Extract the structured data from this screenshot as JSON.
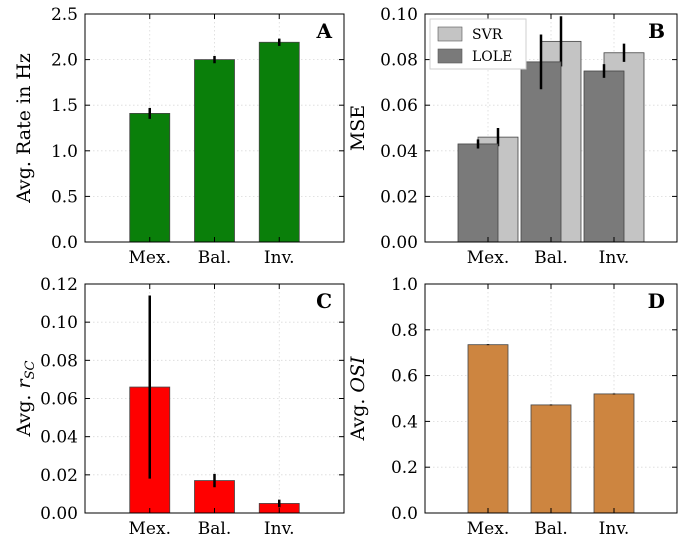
{
  "chart_data": [
    {
      "id": "A",
      "panel_label": "A",
      "type": "bar",
      "categories": [
        "Mex.",
        "Bal.",
        "Inv."
      ],
      "ylabel": "Avg. Rate in Hz",
      "ylim": [
        0,
        2.5
      ],
      "yticks": [
        "0.0",
        "0.5",
        "1.0",
        "1.5",
        "2.0",
        "2.5"
      ],
      "ytick_values": [
        0,
        0.5,
        1.0,
        1.5,
        2.0,
        2.5
      ],
      "grid": true,
      "series": [
        {
          "name": "rate",
          "color": "#0a7f0a",
          "values": [
            1.41,
            2.0,
            2.19
          ],
          "errors": [
            0.06,
            0.04,
            0.04
          ]
        }
      ]
    },
    {
      "id": "B",
      "panel_label": "B",
      "type": "bar",
      "categories": [
        "Mex.",
        "Bal.",
        "Inv."
      ],
      "ylabel": "MSE",
      "ylim": [
        0,
        0.1
      ],
      "yticks": [
        "0.00",
        "0.02",
        "0.04",
        "0.06",
        "0.08",
        "0.10"
      ],
      "ytick_values": [
        0,
        0.02,
        0.04,
        0.06,
        0.08,
        0.1
      ],
      "grid": true,
      "legend_position": "top-left",
      "series": [
        {
          "name": "SVR",
          "color": "#c4c4c4",
          "values": [
            0.046,
            0.088,
            0.083
          ],
          "errors": [
            0.004,
            0.011,
            0.004
          ]
        },
        {
          "name": "LOLE",
          "color": "#7a7a7a",
          "values": [
            0.043,
            0.079,
            0.075
          ],
          "errors": [
            0.002,
            0.012,
            0.003
          ]
        }
      ]
    },
    {
      "id": "C",
      "panel_label": "C",
      "type": "bar",
      "categories": [
        "Mex.",
        "Bal.",
        "Inv."
      ],
      "ylabel_prefix": "Avg. ",
      "ylabel_var": "r",
      "ylabel_sub": "SC",
      "ylim": [
        0,
        0.12
      ],
      "yticks": [
        "0.00",
        "0.02",
        "0.04",
        "0.06",
        "0.08",
        "0.10",
        "0.12"
      ],
      "ytick_values": [
        0,
        0.02,
        0.04,
        0.06,
        0.08,
        0.1,
        0.12
      ],
      "grid": true,
      "series": [
        {
          "name": "rsc",
          "color": "#ff0000",
          "values": [
            0.066,
            0.017,
            0.005
          ],
          "errors": [
            0.048,
            0.0035,
            0.002
          ]
        }
      ]
    },
    {
      "id": "D",
      "panel_label": "D",
      "type": "bar",
      "categories": [
        "Mex.",
        "Bal.",
        "Inv."
      ],
      "ylabel_prefix": "Avg. ",
      "ylabel_var": "OSI",
      "ylim": [
        0,
        1.0
      ],
      "yticks": [
        "0.0",
        "0.2",
        "0.4",
        "0.6",
        "0.8",
        "1.0"
      ],
      "ytick_values": [
        0,
        0.2,
        0.4,
        0.6,
        0.8,
        1.0
      ],
      "grid": true,
      "series": [
        {
          "name": "osi",
          "color": "#cd8540",
          "values": [
            0.735,
            0.472,
            0.52
          ],
          "errors": [
            0.002,
            0.002,
            0.002
          ]
        }
      ]
    }
  ]
}
